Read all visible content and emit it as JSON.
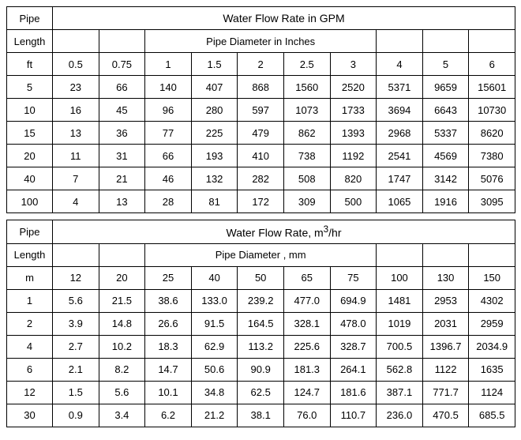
{
  "table1": {
    "headerLabels": {
      "pipe": "Pipe",
      "length": "Length",
      "unit": "ft"
    },
    "title": "Water Flow Rate in GPM",
    "subtitle": "Pipe Diameter in Inches",
    "diameters": [
      "0.5",
      "0.75",
      "1",
      "1.5",
      "2",
      "2.5",
      "3",
      "4",
      "5",
      "6"
    ],
    "rows": [
      {
        "len": "5",
        "v": [
          "23",
          "66",
          "140",
          "407",
          "868",
          "1560",
          "2520",
          "5371",
          "9659",
          "15601"
        ]
      },
      {
        "len": "10",
        "v": [
          "16",
          "45",
          "96",
          "280",
          "597",
          "1073",
          "1733",
          "3694",
          "6643",
          "10730"
        ]
      },
      {
        "len": "15",
        "v": [
          "13",
          "36",
          "77",
          "225",
          "479",
          "862",
          "1393",
          "2968",
          "5337",
          "8620"
        ]
      },
      {
        "len": "20",
        "v": [
          "11",
          "31",
          "66",
          "193",
          "410",
          "738",
          "1192",
          "2541",
          "4569",
          "7380"
        ]
      },
      {
        "len": "40",
        "v": [
          "7",
          "21",
          "46",
          "132",
          "282",
          "508",
          "820",
          "1747",
          "3142",
          "5076"
        ]
      },
      {
        "len": "100",
        "v": [
          "4",
          "13",
          "28",
          "81",
          "172",
          "309",
          "500",
          "1065",
          "1916",
          "3095"
        ]
      }
    ]
  },
  "table2": {
    "headerLabels": {
      "pipe": "Pipe",
      "length": "Length",
      "unit": "m"
    },
    "titlePrefix": "Water Flow Rate, m",
    "titleSup": "3",
    "titleSuffix": "/hr",
    "subtitle": "Pipe Diameter , mm",
    "diameters": [
      "12",
      "20",
      "25",
      "40",
      "50",
      "65",
      "75",
      "100",
      "130",
      "150"
    ],
    "rows": [
      {
        "len": "1",
        "v": [
          "5.6",
          "21.5",
          "38.6",
          "133.0",
          "239.2",
          "477.0",
          "694.9",
          "1481",
          "2953",
          "4302"
        ]
      },
      {
        "len": "2",
        "v": [
          "3.9",
          "14.8",
          "26.6",
          "91.5",
          "164.5",
          "328.1",
          "478.0",
          "1019",
          "2031",
          "2959"
        ]
      },
      {
        "len": "4",
        "v": [
          "2.7",
          "10.2",
          "18.3",
          "62.9",
          "113.2",
          "225.6",
          "328.7",
          "700.5",
          "1396.7",
          "2034.9"
        ]
      },
      {
        "len": "6",
        "v": [
          "2.1",
          "8.2",
          "14.7",
          "50.6",
          "90.9",
          "181.3",
          "264.1",
          "562.8",
          "1122",
          "1635"
        ]
      },
      {
        "len": "12",
        "v": [
          "1.5",
          "5.6",
          "10.1",
          "34.8",
          "62.5",
          "124.7",
          "181.6",
          "387.1",
          "771.7",
          "1124"
        ]
      },
      {
        "len": "30",
        "v": [
          "0.9",
          "3.4",
          "6.2",
          "21.2",
          "38.1",
          "76.0",
          "110.7",
          "236.0",
          "470.5",
          "685.5"
        ]
      }
    ]
  }
}
